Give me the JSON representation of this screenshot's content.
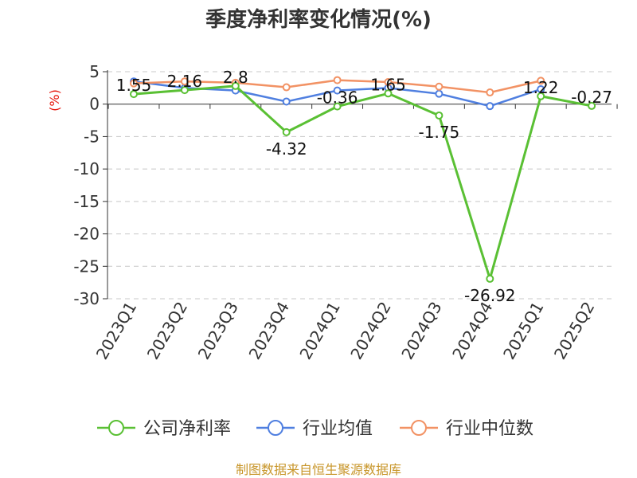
{
  "chart_data": {
    "type": "line",
    "title": "季度净利率变化情况(%)",
    "ylabel": "(%)",
    "categories": [
      "2023Q1",
      "2023Q2",
      "2023Q3",
      "2023Q4",
      "2024Q1",
      "2024Q2",
      "2024Q3",
      "2024Q4",
      "2025Q1",
      "2025Q2"
    ],
    "ylim": [
      -30,
      5
    ],
    "yticks": [
      5,
      0,
      -5,
      -10,
      -15,
      -20,
      -25,
      -30
    ],
    "grid": true,
    "legend_position": "bottom",
    "series": [
      {
        "name": "公司净利率",
        "color": "#5ac034",
        "values": [
          1.55,
          2.16,
          2.8,
          -4.32,
          -0.36,
          1.65,
          -1.75,
          -26.92,
          1.22,
          -0.27
        ],
        "labels": [
          "1.55",
          "2.16",
          "2.8",
          "-4.32",
          "-0.36",
          "1.65",
          "-1.75",
          "-26.92",
          "1.22",
          "-0.27"
        ]
      },
      {
        "name": "行业均值",
        "color": "#4f7fe0",
        "values": [
          3.5,
          2.5,
          2.1,
          0.4,
          2.1,
          2.5,
          1.6,
          -0.3,
          2.3,
          null
        ]
      },
      {
        "name": "行业中位数",
        "color": "#f29264",
        "values": [
          3.2,
          3.5,
          3.3,
          2.6,
          3.7,
          3.4,
          2.7,
          1.8,
          3.6,
          null
        ]
      }
    ],
    "source": "制图数据来自恒生聚源数据库"
  }
}
